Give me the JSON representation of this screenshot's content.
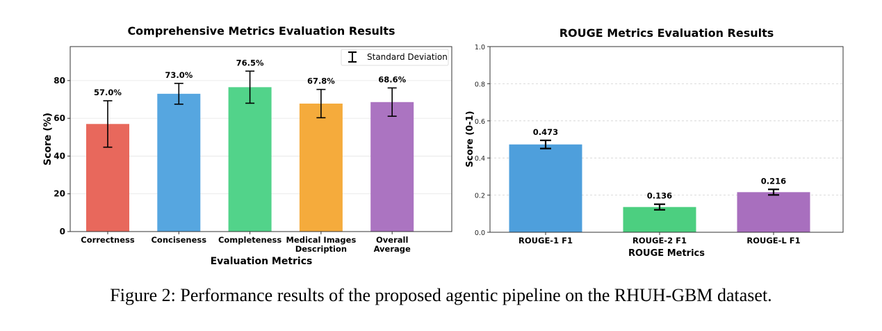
{
  "chart_data": [
    {
      "type": "bar",
      "title": "Comprehensive Metrics Evaluation Results",
      "xlabel": "Evaluation Metrics",
      "ylabel": "Score (%)",
      "ylim": [
        0,
        98
      ],
      "yticks": [
        0,
        20,
        40,
        60,
        80
      ],
      "grid": true,
      "legend": {
        "placement": "top-right",
        "entries": [
          "Standard Deviation"
        ]
      },
      "categories": [
        "Correctness",
        "Conciseness",
        "Completeness",
        "Medical Images\nDescription",
        "Overall\nAverage"
      ],
      "values": [
        57.0,
        73.0,
        76.5,
        67.8,
        68.6
      ],
      "errors": [
        12.3,
        5.5,
        8.5,
        7.5,
        7.5
      ],
      "data_labels": [
        "57.0%",
        "73.0%",
        "76.5%",
        "67.8%",
        "68.6%"
      ],
      "colors": [
        "#e8685c",
        "#56a6e0",
        "#52d38a",
        "#f5ab3c",
        "#ab74c1"
      ]
    },
    {
      "type": "bar",
      "title": "ROUGE Metrics Evaluation Results",
      "xlabel": "ROUGE Metrics",
      "ylabel": "Score (0-1)",
      "ylim": [
        0,
        1.0
      ],
      "yticks": [
        0.0,
        0.2,
        0.4,
        0.6,
        0.8,
        1.0
      ],
      "grid": true,
      "categories": [
        "ROUGE-1 F1",
        "ROUGE-2 F1",
        "ROUGE-L F1"
      ],
      "values": [
        0.473,
        0.136,
        0.216
      ],
      "errors": [
        0.022,
        0.015,
        0.015
      ],
      "data_labels": [
        "0.473",
        "0.136",
        "0.216"
      ],
      "colors": [
        "#4e9fdc",
        "#4ccf80",
        "#a86fbe"
      ]
    }
  ],
  "caption": "Figure 2: Performance results of the proposed agentic pipeline on the RHUH-GBM dataset."
}
